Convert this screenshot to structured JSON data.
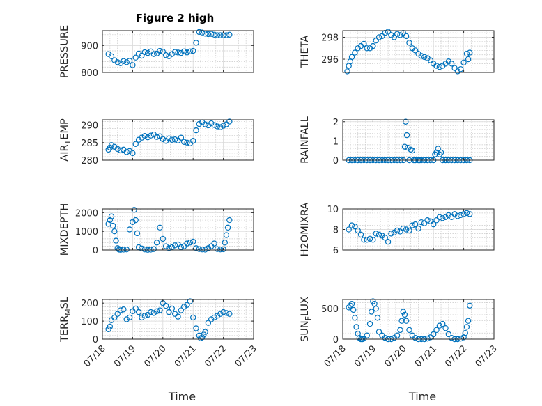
{
  "figure": {
    "title": "Figure 2 high",
    "marker_color": "#0072BD"
  },
  "chart_data": [
    {
      "type": "scatter",
      "ylabel": "PRESSURE",
      "ylim": [
        800,
        955
      ],
      "yticks": [
        800,
        900
      ],
      "xlim": [
        0,
        5
      ],
      "xticks": [
        0,
        1,
        2,
        3,
        4,
        5
      ],
      "xticklabels": [],
      "xlabel": "",
      "grid": true,
      "x": [
        0.2,
        0.3,
        0.4,
        0.5,
        0.6,
        0.7,
        0.8,
        0.9,
        1.0,
        1.1,
        1.2,
        1.3,
        1.4,
        1.5,
        1.6,
        1.7,
        1.8,
        1.9,
        2.0,
        2.1,
        2.2,
        2.3,
        2.4,
        2.5,
        2.6,
        2.7,
        2.8,
        2.9,
        3.0,
        3.1,
        3.2,
        3.3,
        3.4,
        3.5,
        3.6,
        3.7,
        3.8,
        3.9,
        4.0,
        4.1,
        4.2
      ],
      "y": [
        868,
        860,
        845,
        838,
        834,
        842,
        838,
        843,
        827,
        855,
        870,
        862,
        875,
        872,
        878,
        868,
        870,
        880,
        877,
        864,
        860,
        868,
        876,
        874,
        872,
        878,
        874,
        878,
        880,
        910,
        950,
        948,
        944,
        942,
        943,
        940,
        938,
        938,
        938,
        938,
        940
      ]
    },
    {
      "type": "scatter",
      "ylabel": "THETA",
      "ylim": [
        294.8,
        298.6
      ],
      "yticks": [
        296,
        298
      ],
      "xlim": [
        0,
        5
      ],
      "xticks": [
        0,
        1,
        2,
        3,
        4,
        5
      ],
      "xticklabels": [],
      "xlabel": "",
      "grid": true,
      "x": [
        0.15,
        0.2,
        0.25,
        0.3,
        0.4,
        0.5,
        0.6,
        0.7,
        0.8,
        0.9,
        1.0,
        1.1,
        1.2,
        1.3,
        1.4,
        1.5,
        1.6,
        1.7,
        1.8,
        1.9,
        2.0,
        2.1,
        2.2,
        2.3,
        2.4,
        2.5,
        2.6,
        2.7,
        2.8,
        2.9,
        3.0,
        3.1,
        3.2,
        3.3,
        3.4,
        3.5,
        3.6,
        3.7,
        3.8,
        3.9,
        4.0,
        4.1,
        4.15,
        4.2
      ],
      "y": [
        294.9,
        295.4,
        295.8,
        296.2,
        296.6,
        297.0,
        297.2,
        297.4,
        297.0,
        297.0,
        297.2,
        297.7,
        298.0,
        298.1,
        298.4,
        298.5,
        298.2,
        298.0,
        298.3,
        298.2,
        298.4,
        298.1,
        297.5,
        297.0,
        296.8,
        296.5,
        296.3,
        296.2,
        296.1,
        295.9,
        295.6,
        295.4,
        295.3,
        295.4,
        295.6,
        295.8,
        295.6,
        295.2,
        294.9,
        295.1,
        295.7,
        296.5,
        296.0,
        296.6
      ]
    },
    {
      "type": "scatter",
      "ylabel": "AIR_TEMP",
      "ylim": [
        280,
        291.5
      ],
      "yticks": [
        280,
        285,
        290
      ],
      "xlim": [
        0,
        5
      ],
      "xticks": [
        0,
        1,
        2,
        3,
        4,
        5
      ],
      "xticklabels": [],
      "xlabel": "",
      "grid": true,
      "x": [
        0.2,
        0.25,
        0.3,
        0.4,
        0.5,
        0.6,
        0.7,
        0.8,
        0.9,
        1.0,
        1.1,
        1.2,
        1.3,
        1.4,
        1.5,
        1.6,
        1.7,
        1.8,
        1.9,
        2.0,
        2.1,
        2.2,
        2.3,
        2.4,
        2.5,
        2.6,
        2.7,
        2.8,
        2.9,
        3.0,
        3.1,
        3.2,
        3.3,
        3.4,
        3.5,
        3.6,
        3.7,
        3.8,
        3.9,
        4.0,
        4.1,
        4.2
      ],
      "y": [
        283.0,
        283.6,
        284.3,
        283.8,
        283.2,
        282.8,
        283.0,
        282.3,
        282.6,
        282.0,
        284.6,
        285.8,
        286.4,
        286.9,
        286.5,
        287.0,
        287.3,
        286.6,
        286.8,
        286.0,
        285.5,
        286.2,
        285.8,
        285.9,
        285.6,
        286.4,
        285.2,
        285.0,
        284.8,
        285.5,
        288.5,
        290.3,
        290.8,
        290.2,
        289.9,
        290.5,
        290.0,
        289.6,
        289.4,
        289.8,
        290.2,
        291.0
      ]
    },
    {
      "type": "scatter",
      "ylabel": "RAINFALL",
      "ylim": [
        0,
        2.1
      ],
      "yticks": [
        0,
        1,
        2
      ],
      "xlim": [
        0,
        5
      ],
      "xticks": [
        0,
        1,
        2,
        3,
        4,
        5
      ],
      "xticklabels": [],
      "xlabel": "",
      "grid": true,
      "x": [
        0.2,
        0.3,
        0.4,
        0.5,
        0.6,
        0.7,
        0.8,
        0.9,
        1.0,
        1.1,
        1.2,
        1.3,
        1.4,
        1.5,
        1.6,
        1.7,
        1.8,
        1.9,
        2.0,
        2.05,
        2.08,
        2.12,
        2.15,
        2.2,
        2.25,
        2.3,
        2.35,
        2.4,
        2.5,
        2.55,
        2.6,
        2.7,
        2.8,
        2.9,
        3.0,
        3.05,
        3.1,
        3.15,
        3.2,
        3.25,
        3.3,
        3.4,
        3.5,
        3.6,
        3.7,
        3.8,
        3.9,
        4.0,
        4.1,
        4.2
      ],
      "y": [
        0,
        0,
        0,
        0,
        0,
        0,
        0,
        0,
        0,
        0,
        0,
        0,
        0,
        0,
        0,
        0,
        0,
        0,
        0,
        0.7,
        2.0,
        1.3,
        0.65,
        0,
        0.55,
        0.5,
        0,
        0,
        0,
        0,
        0,
        0,
        0,
        0,
        0,
        0.3,
        0.4,
        0.6,
        0.3,
        0.4,
        0,
        0,
        0,
        0,
        0,
        0,
        0,
        0,
        0,
        0
      ]
    },
    {
      "type": "scatter",
      "ylabel": "MIXDEPTH",
      "ylim": [
        0,
        2200
      ],
      "yticks": [
        0,
        1000,
        2000
      ],
      "xlim": [
        0,
        5
      ],
      "xticks": [
        0,
        1,
        2,
        3,
        4,
        5
      ],
      "xticklabels": [],
      "xlabel": "",
      "grid": true,
      "x": [
        0.2,
        0.25,
        0.3,
        0.35,
        0.4,
        0.45,
        0.5,
        0.55,
        0.6,
        0.7,
        0.8,
        0.9,
        1.0,
        1.05,
        1.1,
        1.15,
        1.2,
        1.3,
        1.4,
        1.5,
        1.6,
        1.7,
        1.8,
        1.9,
        2.0,
        2.1,
        2.2,
        2.3,
        2.4,
        2.5,
        2.6,
        2.7,
        2.8,
        2.9,
        3.0,
        3.1,
        3.2,
        3.3,
        3.4,
        3.5,
        3.6,
        3.7,
        3.8,
        3.9,
        4.0,
        4.05,
        4.1,
        4.15,
        4.2
      ],
      "y": [
        1400,
        1600,
        1800,
        1300,
        1000,
        500,
        100,
        20,
        10,
        20,
        30,
        1100,
        1500,
        2150,
        1600,
        900,
        150,
        80,
        30,
        10,
        20,
        50,
        400,
        1200,
        600,
        200,
        100,
        150,
        250,
        300,
        150,
        200,
        350,
        400,
        450,
        100,
        50,
        30,
        20,
        100,
        200,
        350,
        50,
        30,
        40,
        400,
        800,
        1200,
        1600
      ]
    },
    {
      "type": "scatter",
      "ylabel": "H2OMIXRA",
      "ylim": [
        6,
        10
      ],
      "yticks": [
        6,
        8,
        10
      ],
      "xlim": [
        0,
        5
      ],
      "xticks": [
        0,
        1,
        2,
        3,
        4,
        5
      ],
      "xticklabels": [],
      "xlabel": "",
      "grid": true,
      "x": [
        0.2,
        0.3,
        0.4,
        0.5,
        0.6,
        0.7,
        0.8,
        0.9,
        1.0,
        1.1,
        1.2,
        1.3,
        1.4,
        1.5,
        1.6,
        1.7,
        1.8,
        1.9,
        2.0,
        2.1,
        2.2,
        2.3,
        2.4,
        2.5,
        2.6,
        2.7,
        2.8,
        2.9,
        3.0,
        3.1,
        3.2,
        3.3,
        3.4,
        3.5,
        3.6,
        3.7,
        3.8,
        3.9,
        4.0,
        4.1,
        4.2
      ],
      "y": [
        8.0,
        8.4,
        8.3,
        7.9,
        7.5,
        7.0,
        7.0,
        7.1,
        7.0,
        7.6,
        7.5,
        7.4,
        7.2,
        6.8,
        7.6,
        7.7,
        7.9,
        7.8,
        8.1,
        8.0,
        7.9,
        8.4,
        8.5,
        8.1,
        8.7,
        8.6,
        8.9,
        8.8,
        8.5,
        8.9,
        9.2,
        9.1,
        9.2,
        9.4,
        9.2,
        9.5,
        9.3,
        9.4,
        9.5,
        9.6,
        9.5
      ]
    },
    {
      "type": "scatter",
      "ylabel": "TERR_MSL",
      "ylim": [
        0,
        220
      ],
      "yticks": [
        0,
        100,
        200
      ],
      "xlim": [
        0,
        5
      ],
      "xticks": [
        0,
        1,
        2,
        3,
        4,
        5
      ],
      "xticklabels": [
        "07/18",
        "07/19",
        "07/20",
        "07/21",
        "07/22",
        "07/23"
      ],
      "xlabel": "Time",
      "grid": true,
      "x": [
        0.2,
        0.25,
        0.3,
        0.4,
        0.5,
        0.6,
        0.7,
        0.8,
        0.9,
        1.0,
        1.1,
        1.2,
        1.3,
        1.4,
        1.5,
        1.6,
        1.7,
        1.8,
        1.9,
        2.0,
        2.1,
        2.2,
        2.3,
        2.4,
        2.5,
        2.6,
        2.7,
        2.8,
        2.9,
        3.0,
        3.1,
        3.2,
        3.25,
        3.3,
        3.35,
        3.4,
        3.5,
        3.6,
        3.7,
        3.8,
        3.9,
        4.0,
        4.1,
        4.2
      ],
      "y": [
        55,
        70,
        105,
        120,
        140,
        160,
        165,
        110,
        120,
        155,
        170,
        150,
        120,
        130,
        135,
        150,
        145,
        155,
        160,
        200,
        185,
        150,
        170,
        140,
        125,
        160,
        180,
        190,
        210,
        120,
        60,
        20,
        5,
        10,
        25,
        40,
        90,
        110,
        120,
        130,
        140,
        150,
        145,
        140
      ]
    },
    {
      "type": "scatter",
      "ylabel": "SUN_FLUX",
      "ylim": [
        0,
        650
      ],
      "yticks": [
        0,
        500
      ],
      "xlim": [
        0,
        5
      ],
      "xticks": [
        0,
        1,
        2,
        3,
        4,
        5
      ],
      "xticklabels": [
        "07/18",
        "07/19",
        "07/20",
        "07/21",
        "07/22",
        "07/23"
      ],
      "xlabel": "Time",
      "grid": true,
      "x": [
        0.2,
        0.25,
        0.3,
        0.35,
        0.4,
        0.45,
        0.5,
        0.55,
        0.6,
        0.65,
        0.7,
        0.8,
        0.9,
        0.95,
        1.0,
        1.05,
        1.1,
        1.15,
        1.2,
        1.3,
        1.4,
        1.5,
        1.6,
        1.7,
        1.8,
        1.9,
        1.95,
        2.0,
        2.05,
        2.1,
        2.2,
        2.3,
        2.4,
        2.5,
        2.6,
        2.7,
        2.8,
        2.9,
        3.0,
        3.1,
        3.2,
        3.3,
        3.4,
        3.5,
        3.6,
        3.7,
        3.8,
        3.9,
        4.0,
        4.05,
        4.1,
        4.15,
        4.2
      ],
      "y": [
        520,
        550,
        580,
        480,
        350,
        200,
        90,
        20,
        0,
        0,
        10,
        60,
        250,
        450,
        620,
        580,
        500,
        350,
        120,
        60,
        20,
        0,
        0,
        20,
        60,
        150,
        300,
        450,
        400,
        300,
        150,
        60,
        20,
        0,
        0,
        0,
        10,
        30,
        80,
        150,
        220,
        250,
        180,
        80,
        20,
        0,
        0,
        10,
        30,
        100,
        200,
        300,
        550
      ]
    }
  ]
}
